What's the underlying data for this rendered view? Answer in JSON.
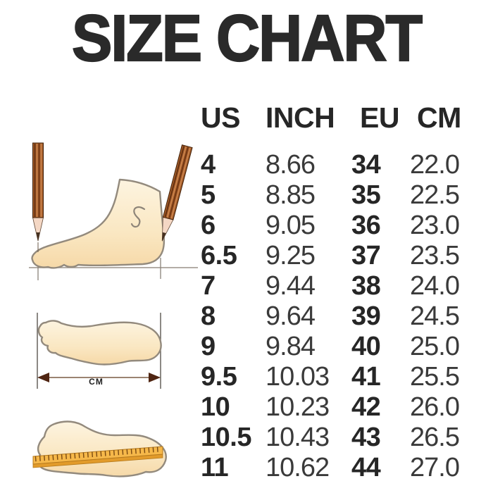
{
  "title": "SIZE CHART",
  "chart_data": {
    "type": "table",
    "title": "SIZE CHART",
    "columns": [
      "US",
      "INCH",
      "EU",
      "CM"
    ],
    "rows": [
      [
        "4",
        "8.66",
        "34",
        "22.0"
      ],
      [
        "5",
        "8.85",
        "35",
        "22.5"
      ],
      [
        "6",
        "9.05",
        "36",
        "23.0"
      ],
      [
        "6.5",
        "9.25",
        "37",
        "23.5"
      ],
      [
        "7",
        "9.44",
        "38",
        "24.0"
      ],
      [
        "8",
        "9.64",
        "39",
        "24.5"
      ],
      [
        "9",
        "9.84",
        "40",
        "25.0"
      ],
      [
        "9.5",
        "10.03",
        "41",
        "25.5"
      ],
      [
        "10",
        "10.23",
        "42",
        "26.0"
      ],
      [
        "10.5",
        "10.43",
        "43",
        "26.5"
      ],
      [
        "11",
        "10.62",
        "44",
        "27.0"
      ]
    ]
  },
  "illustrations": {
    "top": "foot-side-view-with-measuring-pencils",
    "middle": "foot-sole-outline-with-length-arrow",
    "bottom": "foot-sole-with-ruler",
    "measure_unit_label": "CM"
  },
  "colors": {
    "title_text": "#2a2a2a",
    "table_bold_text": "#262626",
    "table_regular_text": "#3a3a3a",
    "foot_fill_light": "#fdf3dd",
    "foot_fill_dark": "#f7dcab",
    "foot_outline": "#938a7d",
    "pencil_brown": "#a05a28",
    "pencil_wood": "#f4d7c4",
    "ruler_orange": "#f6b84a",
    "ruler_edge": "#e29b2b",
    "arrow_brown": "#4f2512",
    "background": "#ffffff"
  }
}
